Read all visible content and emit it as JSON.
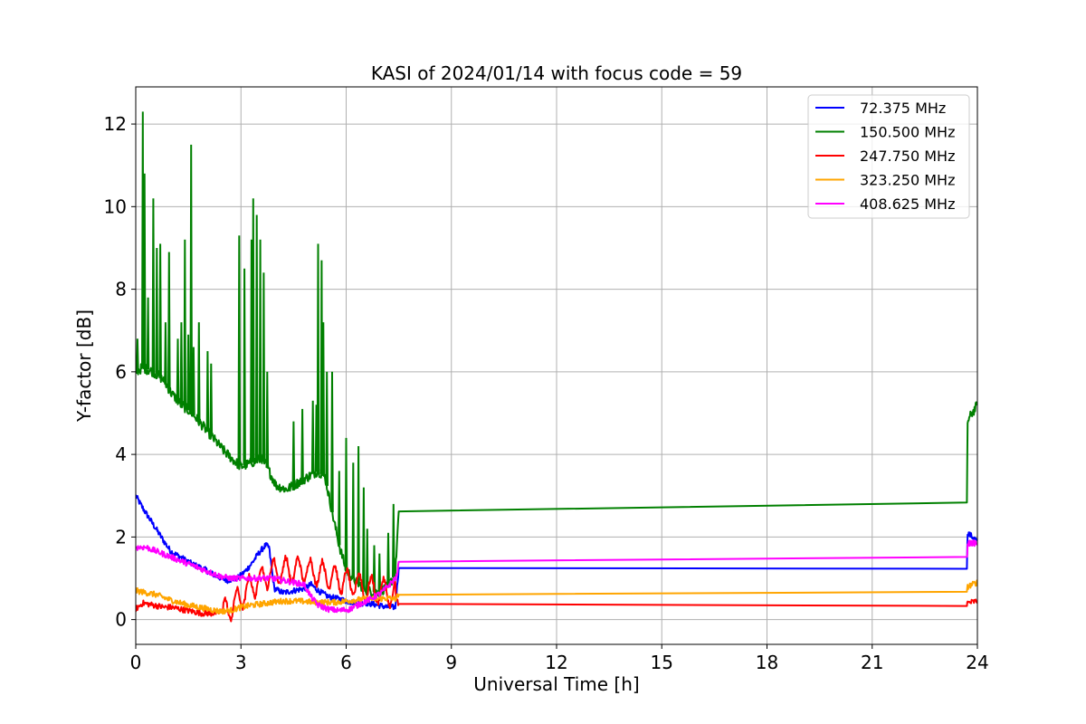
{
  "chart_data": {
    "type": "line",
    "title": "KASI of 2024/01/14 with focus code = 59",
    "xlabel": "Universal Time [h]",
    "ylabel": "Y-factor [dB]",
    "xlim": [
      0,
      24
    ],
    "ylim": [
      -0.6,
      12.9
    ],
    "xticks": [
      0,
      3,
      6,
      9,
      12,
      15,
      18,
      21,
      24
    ],
    "yticks": [
      0,
      2,
      4,
      6,
      8,
      10,
      12
    ],
    "grid": true,
    "legend_position": "top-right",
    "series": [
      {
        "name": " 72.375 MHz",
        "color": "#0000ff",
        "points": [
          [
            0,
            3.0
          ],
          [
            0.2,
            2.7
          ],
          [
            0.5,
            2.3
          ],
          [
            0.8,
            1.9
          ],
          [
            1.0,
            1.65
          ],
          [
            1.3,
            1.5
          ],
          [
            1.6,
            1.35
          ],
          [
            2.0,
            1.2
          ],
          [
            2.3,
            1.05
          ],
          [
            2.6,
            0.95
          ],
          [
            2.9,
            1.0
          ],
          [
            3.1,
            1.15
          ],
          [
            3.3,
            1.35
          ],
          [
            3.5,
            1.6
          ],
          [
            3.7,
            1.8
          ],
          [
            3.8,
            1.75
          ],
          [
            3.95,
            0.75
          ],
          [
            4.2,
            0.65
          ],
          [
            4.5,
            0.7
          ],
          [
            4.8,
            0.75
          ],
          [
            5.0,
            0.85
          ],
          [
            5.2,
            0.7
          ],
          [
            5.5,
            0.55
          ],
          [
            5.8,
            0.5
          ],
          [
            6.0,
            0.45
          ],
          [
            6.3,
            0.4
          ],
          [
            6.6,
            0.4
          ],
          [
            6.9,
            0.35
          ],
          [
            7.2,
            0.3
          ],
          [
            7.4,
            0.3
          ],
          [
            7.5,
            1.25
          ],
          [
            23.7,
            1.28
          ],
          [
            23.72,
            2.1
          ],
          [
            24,
            1.9
          ]
        ]
      },
      {
        "name": "150.500 MHz",
        "color": "#008000",
        "points": [
          [
            0,
            6.0
          ],
          [
            0.2,
            6.1
          ],
          [
            0.5,
            6.0
          ],
          [
            0.8,
            5.8
          ],
          [
            1.0,
            5.5
          ],
          [
            1.3,
            5.2
          ],
          [
            1.6,
            5.0
          ],
          [
            1.9,
            4.7
          ],
          [
            2.2,
            4.4
          ],
          [
            2.5,
            4.1
          ],
          [
            2.8,
            3.85
          ],
          [
            3.0,
            3.7
          ],
          [
            3.3,
            3.8
          ],
          [
            3.6,
            3.9
          ],
          [
            3.8,
            3.6
          ],
          [
            4.0,
            3.25
          ],
          [
            4.3,
            3.15
          ],
          [
            4.6,
            3.3
          ],
          [
            4.9,
            3.45
          ],
          [
            5.2,
            3.6
          ],
          [
            5.4,
            3.45
          ],
          [
            5.6,
            2.6
          ],
          [
            5.8,
            1.8
          ],
          [
            6.0,
            1.2
          ],
          [
            6.3,
            0.9
          ],
          [
            6.6,
            0.7
          ],
          [
            6.9,
            0.65
          ],
          [
            7.2,
            0.8
          ],
          [
            7.4,
            1.1
          ],
          [
            7.5,
            2.62
          ],
          [
            23.7,
            2.73
          ],
          [
            23.72,
            4.8
          ],
          [
            23.85,
            5.0
          ],
          [
            24,
            5.2
          ]
        ],
        "spikes": [
          [
            0.05,
            6.8
          ],
          [
            0.2,
            12.3
          ],
          [
            0.25,
            10.8
          ],
          [
            0.35,
            7.8
          ],
          [
            0.5,
            10.2
          ],
          [
            0.6,
            9.0
          ],
          [
            0.7,
            9.1
          ],
          [
            0.85,
            7.2
          ],
          [
            0.95,
            8.9
          ],
          [
            1.2,
            6.8
          ],
          [
            1.3,
            7.2
          ],
          [
            1.4,
            9.2
          ],
          [
            1.5,
            6.9
          ],
          [
            1.58,
            11.5
          ],
          [
            1.65,
            6.6
          ],
          [
            1.8,
            7.2
          ],
          [
            2.05,
            6.5
          ],
          [
            2.15,
            6.2
          ],
          [
            2.95,
            9.3
          ],
          [
            3.1,
            8.5
          ],
          [
            3.3,
            9.2
          ],
          [
            3.35,
            10.2
          ],
          [
            3.45,
            9.8
          ],
          [
            3.55,
            9.2
          ],
          [
            3.65,
            8.4
          ],
          [
            3.75,
            6.0
          ],
          [
            4.5,
            4.8
          ],
          [
            4.75,
            5.1
          ],
          [
            5.05,
            5.3
          ],
          [
            5.15,
            5.2
          ],
          [
            5.2,
            9.1
          ],
          [
            5.3,
            8.7
          ],
          [
            5.35,
            7.2
          ],
          [
            5.45,
            6.0
          ],
          [
            5.6,
            6.0
          ],
          [
            5.8,
            3.6
          ],
          [
            6.0,
            4.4
          ],
          [
            6.2,
            3.8
          ],
          [
            6.35,
            4.2
          ],
          [
            6.5,
            3.2
          ],
          [
            6.6,
            2.2
          ],
          [
            6.8,
            1.8
          ],
          [
            6.95,
            1.6
          ],
          [
            7.2,
            2.1
          ],
          [
            7.35,
            2.8
          ]
        ]
      },
      {
        "name": "247.750 MHz",
        "color": "#ff0000",
        "points": [
          [
            0,
            0.25
          ],
          [
            0.2,
            0.4
          ],
          [
            0.5,
            0.35
          ],
          [
            0.8,
            0.3
          ],
          [
            1.0,
            0.3
          ],
          [
            1.3,
            0.25
          ],
          [
            1.6,
            0.2
          ],
          [
            1.9,
            0.15
          ],
          [
            2.2,
            0.15
          ],
          [
            2.5,
            0.2
          ],
          [
            2.8,
            0.35
          ],
          [
            3.0,
            0.55
          ],
          [
            3.3,
            0.8
          ],
          [
            3.6,
            1.0
          ],
          [
            3.9,
            1.15
          ],
          [
            4.2,
            1.2
          ],
          [
            4.5,
            1.2
          ],
          [
            4.8,
            1.2
          ],
          [
            5.1,
            1.15
          ],
          [
            5.4,
            1.1
          ],
          [
            5.7,
            1.0
          ],
          [
            6.0,
            0.9
          ],
          [
            6.3,
            0.85
          ],
          [
            6.6,
            0.75
          ],
          [
            6.9,
            0.7
          ],
          [
            7.2,
            0.65
          ],
          [
            7.4,
            0.6
          ],
          [
            7.5,
            0.38
          ],
          [
            23.7,
            0.38
          ],
          [
            23.72,
            0.4
          ],
          [
            24,
            0.45
          ]
        ],
        "oscillation_range": [
          2.5,
          7.4
        ],
        "oscillation_amplitude": 0.3
      },
      {
        "name": "323.250 MHz",
        "color": "#ffa500",
        "points": [
          [
            0,
            0.7
          ],
          [
            0.3,
            0.65
          ],
          [
            0.6,
            0.6
          ],
          [
            0.9,
            0.5
          ],
          [
            1.2,
            0.42
          ],
          [
            1.5,
            0.35
          ],
          [
            1.8,
            0.3
          ],
          [
            2.1,
            0.25
          ],
          [
            2.4,
            0.2
          ],
          [
            2.7,
            0.22
          ],
          [
            3.0,
            0.3
          ],
          [
            3.3,
            0.35
          ],
          [
            3.6,
            0.38
          ],
          [
            3.9,
            0.42
          ],
          [
            4.2,
            0.45
          ],
          [
            4.5,
            0.45
          ],
          [
            4.8,
            0.44
          ],
          [
            5.1,
            0.42
          ],
          [
            5.4,
            0.42
          ],
          [
            5.7,
            0.42
          ],
          [
            6.0,
            0.45
          ],
          [
            6.3,
            0.48
          ],
          [
            6.6,
            0.5
          ],
          [
            6.9,
            0.5
          ],
          [
            7.2,
            0.52
          ],
          [
            7.4,
            0.5
          ],
          [
            7.5,
            0.6
          ],
          [
            23.7,
            0.62
          ],
          [
            23.72,
            0.8
          ],
          [
            24,
            0.9
          ]
        ]
      },
      {
        "name": "408.625 MHz",
        "color": "#ff00ff",
        "points": [
          [
            0,
            1.75
          ],
          [
            0.3,
            1.75
          ],
          [
            0.6,
            1.65
          ],
          [
            0.9,
            1.55
          ],
          [
            1.2,
            1.45
          ],
          [
            1.5,
            1.35
          ],
          [
            1.8,
            1.25
          ],
          [
            2.1,
            1.15
          ],
          [
            2.4,
            1.05
          ],
          [
            2.7,
            1.0
          ],
          [
            3.0,
            1.0
          ],
          [
            3.3,
            1.0
          ],
          [
            3.6,
            1.0
          ],
          [
            3.9,
            1.0
          ],
          [
            4.2,
            0.95
          ],
          [
            4.5,
            0.9
          ],
          [
            4.8,
            0.85
          ],
          [
            5.0,
            0.55
          ],
          [
            5.2,
            0.35
          ],
          [
            5.5,
            0.25
          ],
          [
            5.8,
            0.22
          ],
          [
            6.1,
            0.25
          ],
          [
            6.4,
            0.38
          ],
          [
            6.7,
            0.5
          ],
          [
            7.0,
            0.65
          ],
          [
            7.3,
            0.9
          ],
          [
            7.45,
            1.05
          ],
          [
            7.5,
            1.4
          ],
          [
            23.7,
            1.45
          ],
          [
            23.72,
            1.85
          ],
          [
            24,
            1.85
          ]
        ]
      }
    ]
  }
}
